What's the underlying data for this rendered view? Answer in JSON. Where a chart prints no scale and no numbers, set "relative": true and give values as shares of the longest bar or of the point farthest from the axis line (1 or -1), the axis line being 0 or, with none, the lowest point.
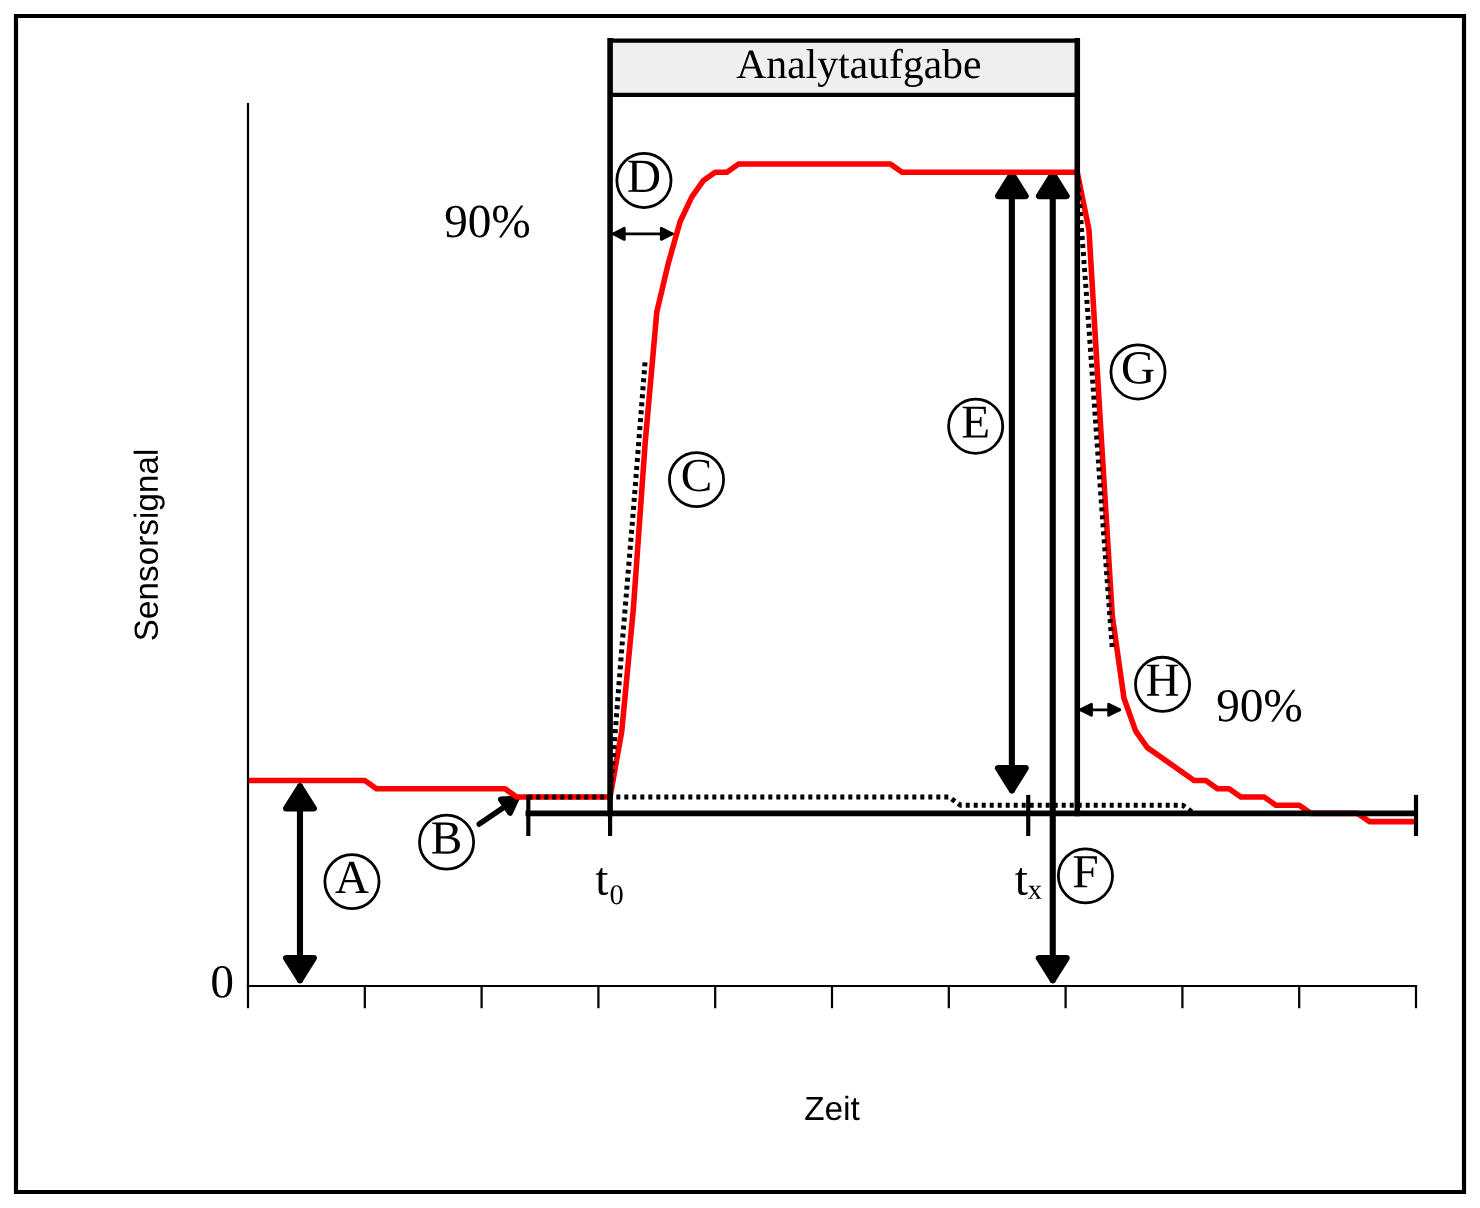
{
  "chart_data": {
    "type": "line",
    "xlabel": "Zeit",
    "ylabel": "Sensorsignal",
    "relative": true,
    "grid": false,
    "legend": false,
    "marker": "none",
    "categories": [
      null,
      null,
      null,
      null,
      null,
      null,
      null,
      null,
      null,
      null,
      null,
      null,
      null,
      null,
      null,
      null,
      null,
      null,
      null,
      null,
      null,
      null,
      null,
      null,
      null,
      null,
      null,
      null,
      null,
      null,
      null,
      null,
      null,
      null,
      null,
      null,
      null,
      null,
      null,
      null,
      null,
      null,
      null,
      null,
      null,
      null,
      null,
      null,
      null,
      null,
      null,
      null,
      null,
      null,
      null,
      null,
      null,
      null,
      null,
      null,
      null,
      null,
      null,
      null,
      null,
      null,
      null,
      null,
      null,
      null,
      null,
      null,
      null,
      null,
      null,
      null,
      null,
      null,
      null,
      null,
      null,
      null,
      null,
      null,
      null,
      null,
      null,
      null,
      null,
      null,
      null,
      null,
      null,
      null,
      null,
      null,
      null,
      null,
      null,
      null,
      null
    ],
    "series": [
      {
        "color": "#ff0000",
        "line_style": "solid",
        "values": [
          0.25,
          0.25,
          0.25,
          0.25,
          0.25,
          0.25,
          0.25,
          0.25,
          0.25,
          0.25,
          0.25,
          0.24,
          0.24,
          0.24,
          0.24,
          0.24,
          0.24,
          0.24,
          0.24,
          0.24,
          0.24,
          0.24,
          0.24,
          0.23,
          0.23,
          0.23,
          0.23,
          0.23,
          0.23,
          0.23,
          0.23,
          0.23,
          0.31,
          0.46,
          0.66,
          0.82,
          0.88,
          0.93,
          0.96,
          0.98,
          0.99,
          0.99,
          1.0,
          1.0,
          1.0,
          1.0,
          1.0,
          1.0,
          1.0,
          1.0,
          1.0,
          1.0,
          1.0,
          1.0,
          1.0,
          1.0,
          0.99,
          0.99,
          0.99,
          0.99,
          0.99,
          0.99,
          0.99,
          0.99,
          0.99,
          0.99,
          0.99,
          0.99,
          0.99,
          0.99,
          0.99,
          0.99,
          0.92,
          0.68,
          0.45,
          0.35,
          0.31,
          0.29,
          0.28,
          0.27,
          0.26,
          0.25,
          0.25,
          0.24,
          0.24,
          0.23,
          0.23,
          0.23,
          0.22,
          0.22,
          0.22,
          0.21,
          0.21,
          0.21,
          0.21,
          0.21,
          0.2,
          0.2,
          0.2,
          0.2,
          0.2
        ]
      },
      {
        "color": "#000000",
        "line_style": "dotted",
        "values": [
          null,
          null,
          null,
          null,
          null,
          null,
          null,
          null,
          null,
          null,
          null,
          null,
          null,
          null,
          null,
          null,
          null,
          null,
          null,
          null,
          null,
          null,
          null,
          null,
          0.23,
          0.23,
          0.23,
          0.23,
          0.23,
          0.23,
          0.23,
          0.23,
          0.23,
          0.23,
          0.23,
          0.23,
          0.23,
          0.23,
          0.23,
          0.23,
          0.23,
          0.23,
          0.23,
          0.23,
          0.23,
          0.23,
          0.23,
          0.23,
          0.23,
          0.23,
          0.23,
          0.23,
          0.23,
          0.23,
          0.23,
          0.23,
          0.23,
          0.23,
          0.23,
          0.23,
          0.23,
          0.22,
          0.22,
          0.22,
          0.22,
          0.22,
          0.22,
          0.22,
          0.22,
          0.22,
          0.22,
          0.22,
          0.22,
          0.22,
          0.22,
          0.22,
          0.22,
          0.22,
          0.22,
          0.22,
          0.22,
          0.21,
          0.21,
          0.21,
          0.21,
          0.21,
          0.21,
          0.21,
          0.21,
          0.21,
          0.21,
          0.21,
          0.21,
          0.21,
          0.21,
          0.21,
          0.21,
          0.21,
          0.21,
          0.21,
          0.21
        ]
      },
      {
        "color": "#000000",
        "line_style": "dotted",
        "values": [
          null,
          null,
          null,
          null,
          null,
          null,
          null,
          null,
          null,
          null,
          null,
          null,
          null,
          null,
          null,
          null,
          null,
          null,
          null,
          null,
          null,
          null,
          null,
          null,
          null,
          null,
          null,
          null,
          null,
          null,
          null,
          0.23,
          0.41,
          0.58,
          0.76,
          null,
          null,
          null,
          null,
          null,
          null,
          null,
          null,
          null,
          null,
          null,
          null,
          null,
          null,
          null,
          null,
          null,
          null,
          null,
          null,
          null,
          null,
          null,
          null,
          null,
          null,
          null,
          null,
          null,
          null,
          null,
          null,
          null,
          null,
          null,
          null,
          null,
          null,
          null,
          null,
          null,
          null,
          null,
          null,
          null,
          null,
          null,
          null,
          null,
          null,
          null,
          null,
          null,
          null,
          null,
          null,
          null,
          null,
          null,
          null,
          null,
          null,
          null,
          null,
          null,
          null
        ]
      },
      {
        "color": "#000000",
        "line_style": "dotted",
        "values": [
          null,
          null,
          null,
          null,
          null,
          null,
          null,
          null,
          null,
          null,
          null,
          null,
          null,
          null,
          null,
          null,
          null,
          null,
          null,
          null,
          null,
          null,
          null,
          null,
          null,
          null,
          null,
          null,
          null,
          null,
          null,
          null,
          null,
          null,
          null,
          null,
          null,
          null,
          null,
          null,
          null,
          null,
          null,
          null,
          null,
          null,
          null,
          null,
          null,
          null,
          null,
          null,
          null,
          null,
          null,
          null,
          null,
          null,
          null,
          null,
          null,
          null,
          null,
          null,
          null,
          null,
          null,
          null,
          null,
          null,
          null,
          0.99,
          0.8,
          0.6,
          0.41,
          null,
          null,
          null,
          null,
          null,
          null,
          null,
          null,
          null,
          null,
          null,
          null,
          null,
          null,
          null,
          null,
          null,
          null,
          null,
          null,
          null,
          null,
          null,
          null,
          null,
          null
        ]
      },
      {
        "color": "#000000",
        "line_style": "solid",
        "values": [
          null,
          null,
          null,
          null,
          null,
          null,
          null,
          null,
          null,
          null,
          null,
          null,
          null,
          null,
          null,
          null,
          null,
          null,
          null,
          null,
          null,
          null,
          null,
          null,
          0.21,
          0.21,
          0.21,
          0.21,
          0.21,
          0.21,
          0.21,
          0.21,
          0.21,
          0.21,
          0.21,
          0.21,
          0.21,
          0.21,
          0.21,
          0.21,
          0.21,
          0.21,
          0.21,
          0.21,
          0.21,
          0.21,
          0.21,
          0.21,
          0.21,
          0.21,
          0.21,
          0.21,
          0.21,
          0.21,
          0.21,
          0.21,
          0.21,
          0.21,
          0.21,
          0.21,
          0.21,
          0.21,
          0.21,
          0.21,
          0.21,
          0.21,
          0.21,
          0.21,
          0.21,
          0.21,
          0.21,
          0.21,
          0.21,
          0.21,
          0.21,
          0.21,
          0.21,
          0.21,
          0.21,
          0.21,
          0.21,
          0.21,
          0.21,
          0.21,
          0.21,
          0.21,
          0.21,
          0.21,
          0.21,
          0.21,
          0.21,
          0.21,
          0.21,
          0.21,
          0.21,
          0.21,
          0.21,
          0.21,
          0.21,
          0.21,
          0.21
        ]
      }
    ],
    "annotations": [
      "Analytaufgabe",
      "90%",
      "90%",
      "A",
      "B",
      "C",
      "D",
      "E",
      "F",
      "G",
      "H",
      "t₀",
      "tₓ",
      "0"
    ]
  }
}
